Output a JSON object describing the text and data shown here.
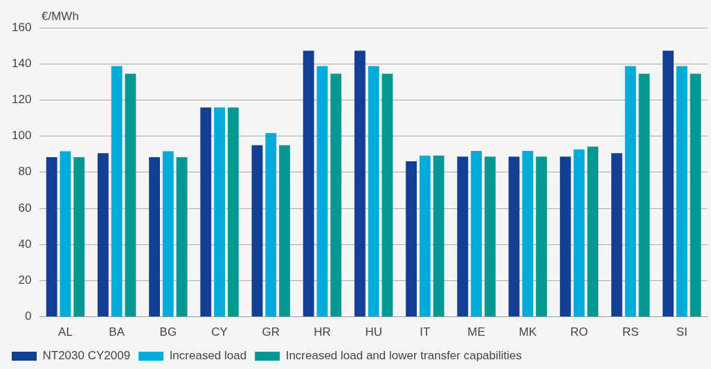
{
  "chart_data": {
    "type": "bar",
    "ylabel": "€/MWh",
    "categories": [
      "AL",
      "BA",
      "BG",
      "CY",
      "GR",
      "HR",
      "HU",
      "IT",
      "ME",
      "MK",
      "RO",
      "RS",
      "SI"
    ],
    "series": [
      {
        "name": "NT2030 CY2009",
        "color": "#123f94",
        "values": [
          88.4,
          90.6,
          88.4,
          115.8,
          95,
          147.3,
          147.3,
          86.1,
          88.6,
          88.6,
          88.6,
          90.6,
          147.3
        ]
      },
      {
        "name": "Increased load",
        "color": "#00aad9",
        "values": [
          91.6,
          138.7,
          91.6,
          115.8,
          101.7,
          138.7,
          138.7,
          89.2,
          91.8,
          91.8,
          92.7,
          138.7,
          138.7
        ]
      },
      {
        "name": "Increased load and lower transfer capabilities",
        "color": "#009890",
        "values": [
          88.4,
          134.5,
          88.4,
          115.8,
          95,
          134.5,
          134.5,
          89.2,
          88.6,
          88.6,
          94.2,
          134.5,
          134.5
        ]
      }
    ],
    "ylim": [
      0,
      160
    ],
    "yticks": [
      0,
      20,
      40,
      60,
      80,
      100,
      120,
      140,
      160
    ],
    "grid": "y",
    "legend": "bottom left"
  }
}
